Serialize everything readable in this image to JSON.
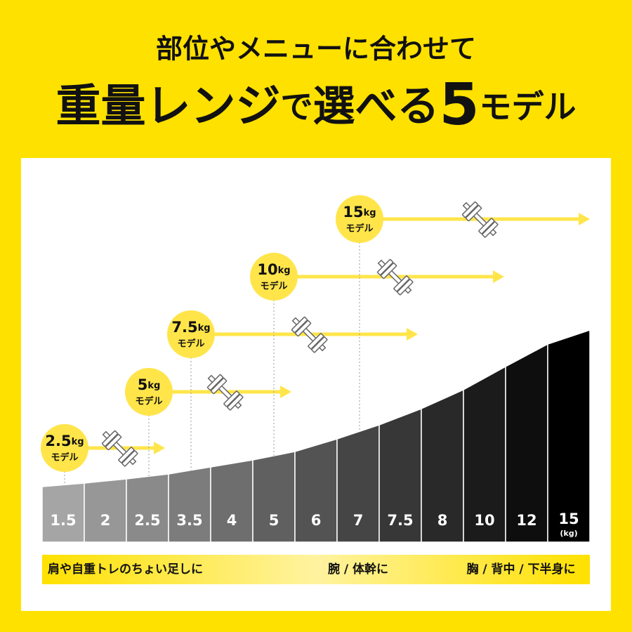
{
  "header": {
    "line1": "部位やメニューに合わせて",
    "line2": [
      "重量レンジ",
      "で",
      "選べる",
      "5",
      "モデル"
    ]
  },
  "scale": {
    "cells": [
      "1.5",
      "2",
      "2.5",
      "3.5",
      "4",
      "5",
      "6",
      "7",
      "7.5",
      "8",
      "10",
      "12",
      "15"
    ],
    "unit": "(kg)"
  },
  "models": [
    {
      "weight": "2.5",
      "unit": "kg",
      "label": "モデル"
    },
    {
      "weight": "5",
      "unit": "kg",
      "label": "モデル"
    },
    {
      "weight": "7.5",
      "unit": "kg",
      "label": "モデル"
    },
    {
      "weight": "10",
      "unit": "kg",
      "label": "モデル"
    },
    {
      "weight": "15",
      "unit": "kg",
      "label": "モデル"
    }
  ],
  "footer": [
    "肩や自重トレのちょい足しに",
    "腕 / 体幹に",
    "胸 / 背中 / 下半身に"
  ]
}
